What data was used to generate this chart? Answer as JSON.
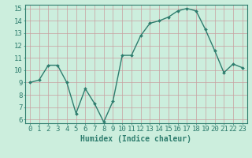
{
  "x": [
    0,
    1,
    2,
    3,
    4,
    5,
    6,
    7,
    8,
    9,
    10,
    11,
    12,
    13,
    14,
    15,
    16,
    17,
    18,
    19,
    20,
    21,
    22,
    23
  ],
  "y": [
    9,
    9.2,
    10.4,
    10.4,
    9,
    6.5,
    8.5,
    7.3,
    5.8,
    7.5,
    11.2,
    11.2,
    12.8,
    13.8,
    14.0,
    14.3,
    14.8,
    15.0,
    14.8,
    13.3,
    11.6,
    9.8,
    10.5,
    10.2
  ],
  "line_color": "#2e7d6e",
  "marker": "D",
  "markersize": 2,
  "linewidth": 1.0,
  "bg_color": "#cceedd",
  "grid_color": "#c8a0a0",
  "xlabel": "Humidex (Indice chaleur)",
  "xlabel_fontsize": 7,
  "xlim_min": -0.5,
  "xlim_max": 23.5,
  "ylim_min": 5.7,
  "ylim_max": 15.3,
  "ytick_vals": [
    6,
    7,
    8,
    9,
    10,
    11,
    12,
    13,
    14,
    15
  ],
  "tick_fontsize": 6.5,
  "axis_color": "#2e7d6e",
  "spine_color": "#2e7d6e"
}
